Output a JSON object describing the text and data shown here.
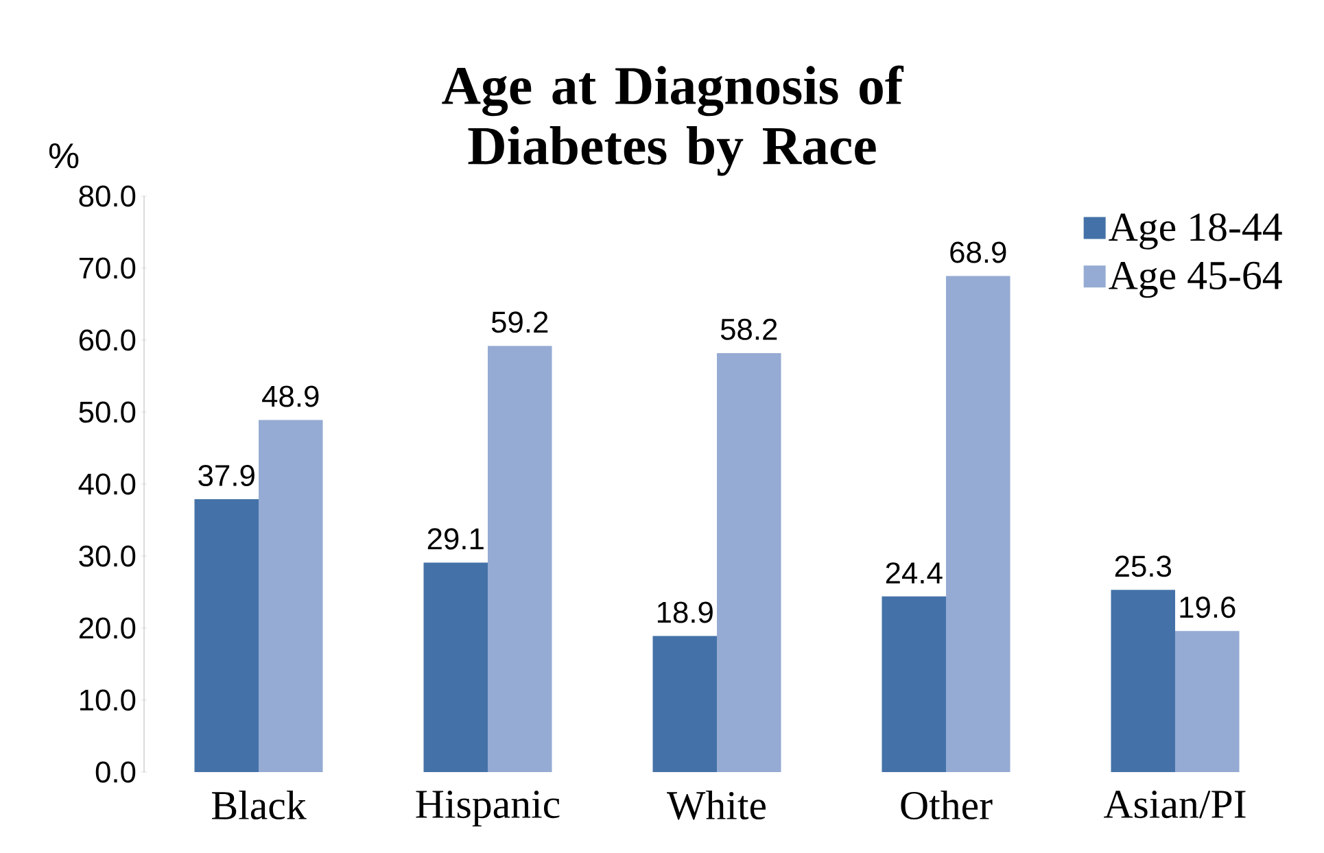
{
  "chart_data": {
    "type": "bar",
    "title": "Age at Diagnosis of Diabetes by Race",
    "ylabel": "%",
    "categories": [
      "Black",
      "Hispanic",
      "White",
      "Other",
      "Asian/PI"
    ],
    "series": [
      {
        "name": "Age 18-44",
        "color": "#4472a8",
        "values": [
          37.9,
          29.1,
          18.9,
          24.4,
          25.3
        ]
      },
      {
        "name": "Age 45-64",
        "color": "#95abd3",
        "values": [
          48.9,
          59.2,
          58.2,
          68.9,
          19.6
        ]
      }
    ],
    "ylim": [
      0,
      80
    ],
    "yticks": [
      {
        "value": 0,
        "label": "0.0"
      },
      {
        "value": 10,
        "label": "10.0"
      },
      {
        "value": 20,
        "label": "20.0"
      },
      {
        "value": 30,
        "label": "30.0"
      },
      {
        "value": 40,
        "label": "40.0"
      },
      {
        "value": 50,
        "label": "50.0"
      },
      {
        "value": 60,
        "label": "60.0"
      },
      {
        "value": 70,
        "label": "70.0"
      },
      {
        "value": 80,
        "label": "80.0"
      }
    ],
    "data_labels": true,
    "legend": "top right",
    "grid": false
  }
}
